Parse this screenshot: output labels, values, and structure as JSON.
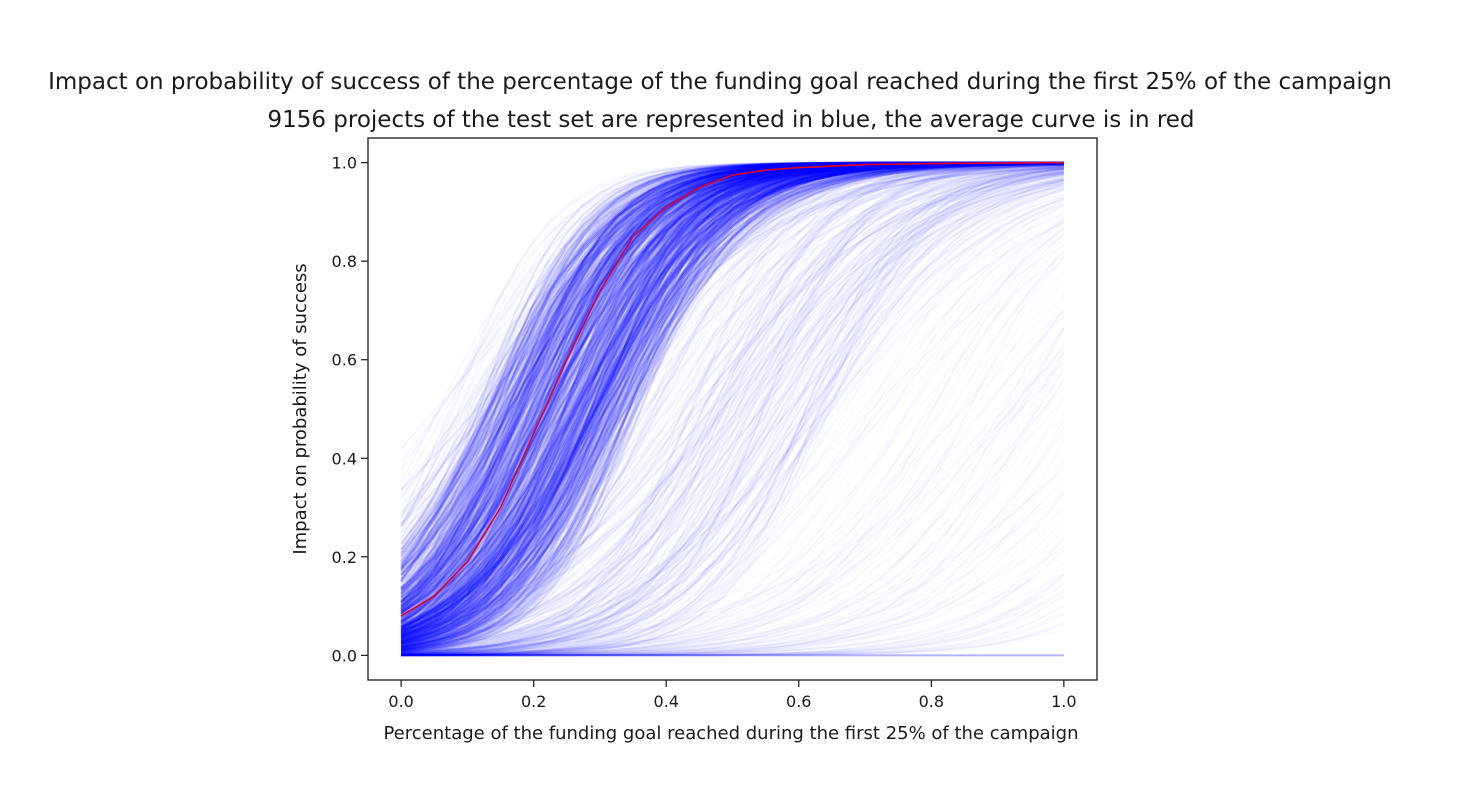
{
  "chart_data": {
    "type": "line",
    "title": "Impact on probability of success of the percentage of the funding goal reached during the first 25% of the campaign",
    "subtitle": "9156 projects of the test set are represented in blue, the average curve is in red",
    "xlabel": "Percentage of the funding goal reached during the first 25% of the campaign",
    "ylabel": "Impact on probability of success",
    "xlim": [
      -0.05,
      1.05
    ],
    "ylim": [
      -0.05,
      1.05
    ],
    "grid": false,
    "xticks": [
      0.0,
      0.2,
      0.4,
      0.6,
      0.8,
      1.0
    ],
    "xtick_labels": [
      "0.0",
      "0.2",
      "0.4",
      "0.6",
      "0.8",
      "1.0"
    ],
    "yticks": [
      0.0,
      0.2,
      0.4,
      0.6,
      0.8,
      1.0
    ],
    "ytick_labels": [
      "0.0",
      "0.2",
      "0.4",
      "0.6",
      "0.8",
      "1.0"
    ],
    "colors": {
      "projects": "#0000ff",
      "average": "#e8001c",
      "axes": "#1a1a1a"
    },
    "series": [
      {
        "role": "average",
        "x": [
          0.0,
          0.05,
          0.1,
          0.15,
          0.2,
          0.25,
          0.3,
          0.35,
          0.4,
          0.45,
          0.5,
          0.55,
          0.6,
          0.7,
          0.8,
          0.9,
          1.0
        ],
        "y": [
          0.08,
          0.12,
          0.19,
          0.3,
          0.45,
          0.6,
          0.74,
          0.85,
          0.91,
          0.95,
          0.975,
          0.985,
          0.99,
          0.996,
          0.998,
          0.999,
          1.0
        ]
      }
    ]
  }
}
